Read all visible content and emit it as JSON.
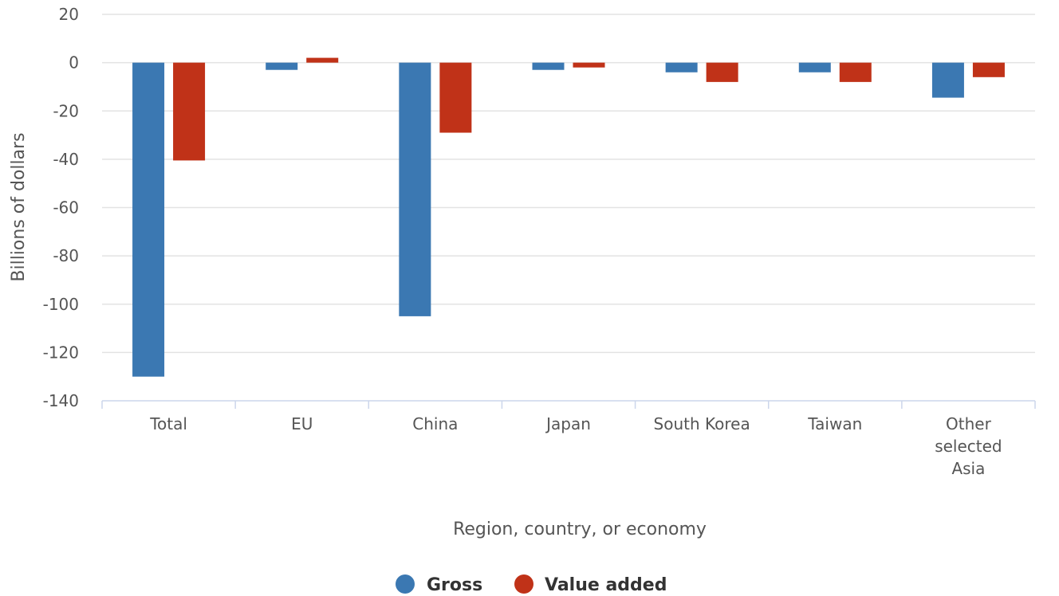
{
  "chart_data": {
    "type": "bar",
    "title": "",
    "xlabel": "Region, country, or economy",
    "ylabel": "Billions of dollars",
    "categories": [
      [
        "Total"
      ],
      [
        "EU"
      ],
      [
        "China"
      ],
      [
        "Japan"
      ],
      [
        "South Korea"
      ],
      [
        "Taiwan"
      ],
      [
        "Other",
        "selected",
        "Asia"
      ]
    ],
    "series": [
      {
        "name": "Gross",
        "color": "#3b78b2",
        "values": [
          -130,
          -3,
          -105,
          -3,
          -4,
          -4,
          -14.5
        ]
      },
      {
        "name": "Value added",
        "color": "#c03218",
        "values": [
          -40.5,
          2,
          -29,
          -2,
          -8,
          -8,
          -6
        ]
      }
    ],
    "ylim": [
      -140,
      20
    ],
    "yticks": [
      20,
      0,
      -20,
      -40,
      -60,
      -80,
      -100,
      -120,
      -140
    ],
    "grid": true,
    "legend_position": "bottom-center"
  }
}
